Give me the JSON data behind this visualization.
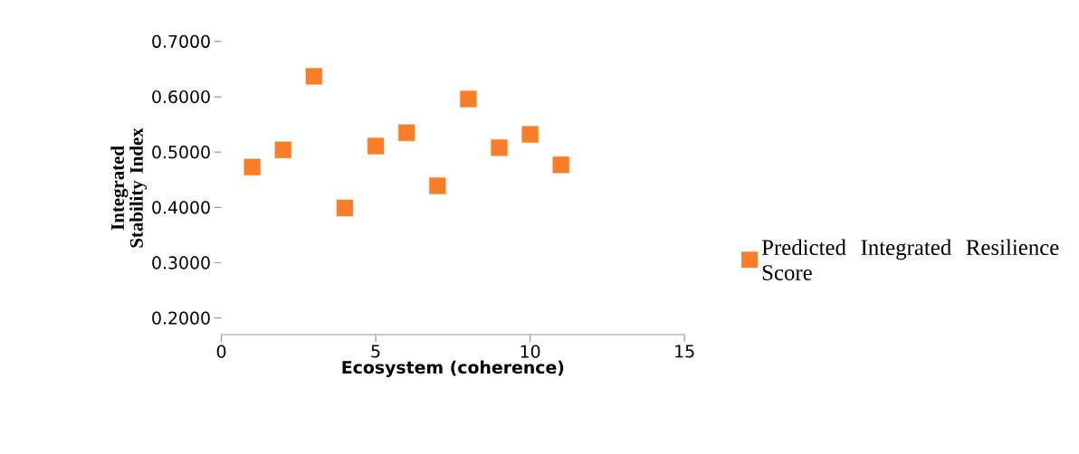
{
  "chart_data": {
    "type": "scatter",
    "xlabel": "Ecosystem (coherence)",
    "ylabel": "Integrated Stability Index",
    "x": [
      1,
      2,
      3,
      4,
      5,
      6,
      7,
      8,
      9,
      10,
      11
    ],
    "series": [
      {
        "name": "Predicted Integrated Resilience Score",
        "color": "#fa7d2a",
        "values": [
          0.473,
          0.504,
          0.637,
          0.399,
          0.511,
          0.535,
          0.439,
          0.596,
          0.508,
          0.532,
          0.477
        ]
      }
    ],
    "xlim": [
      0,
      15
    ],
    "xticks": [
      0,
      5,
      10,
      15
    ],
    "ylim": [
      0.17,
      0.7
    ],
    "yticks": [
      {
        "value": 0.2,
        "label": "0.2000"
      },
      {
        "value": 0.3,
        "label": "0.3000"
      },
      {
        "value": 0.4,
        "label": "0.4000"
      },
      {
        "value": 0.5,
        "label": "0.5000"
      },
      {
        "value": 0.6,
        "label": "0.6000"
      },
      {
        "value": 0.7,
        "label": "0.7000"
      }
    ],
    "marker": "square",
    "grid": false,
    "legend": "right"
  }
}
